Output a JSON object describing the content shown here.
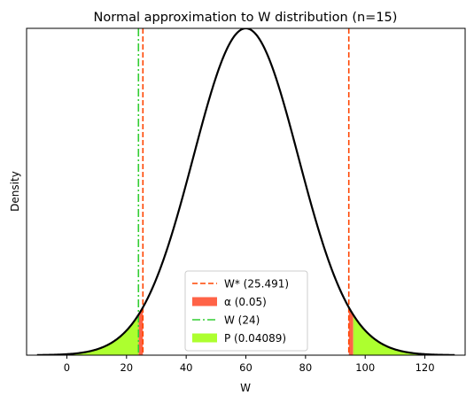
{
  "chart_data": {
    "type": "line",
    "title": "Normal approximation to W distribution (n=15)",
    "xlabel": "W",
    "ylabel": "Density",
    "xlim": [
      -13.5,
      133.5
    ],
    "ylim": [
      0,
      1.0
    ],
    "x_ticks": [
      0,
      20,
      40,
      60,
      80,
      100,
      120
    ],
    "x_tick_labels": [
      "0",
      "20",
      "40",
      "60",
      "80",
      "100",
      "120"
    ],
    "y_ticks_visible": false,
    "grid": false,
    "curve": {
      "distribution": "normal",
      "mean": 60,
      "sd": 17.6,
      "x_range": [
        -10,
        130
      ],
      "peak_normalized": 1.0,
      "color": "#000000"
    },
    "vlines": [
      {
        "x": 25.491,
        "style": "dashed",
        "color": "#ff4500"
      },
      {
        "x": 94.509,
        "style": "dashed",
        "color": "#ff4500"
      },
      {
        "x": 24,
        "style": "dashdot",
        "color": "#32cd32"
      }
    ],
    "fills": [
      {
        "name": "alpha",
        "from": 24,
        "to": 25.491,
        "color": "#ff6347"
      },
      {
        "name": "alpha",
        "from": 94.509,
        "to": 96,
        "color": "#ff6347"
      },
      {
        "name": "p",
        "from": -10,
        "to": 24,
        "color": "#adff2f"
      },
      {
        "name": "p",
        "from": 96,
        "to": 130,
        "color": "#adff2f"
      }
    ],
    "legend": {
      "placement": "lower-center",
      "entries": [
        {
          "label": "W* (25.491)",
          "kind": "dashed",
          "color": "#ff4500"
        },
        {
          "label": "α (0.05)",
          "kind": "patch",
          "color": "#ff6347"
        },
        {
          "label": "W (24)",
          "kind": "dashdot",
          "color": "#32cd32"
        },
        {
          "label": "P (0.04089)",
          "kind": "patch",
          "color": "#adff2f"
        }
      ]
    }
  }
}
